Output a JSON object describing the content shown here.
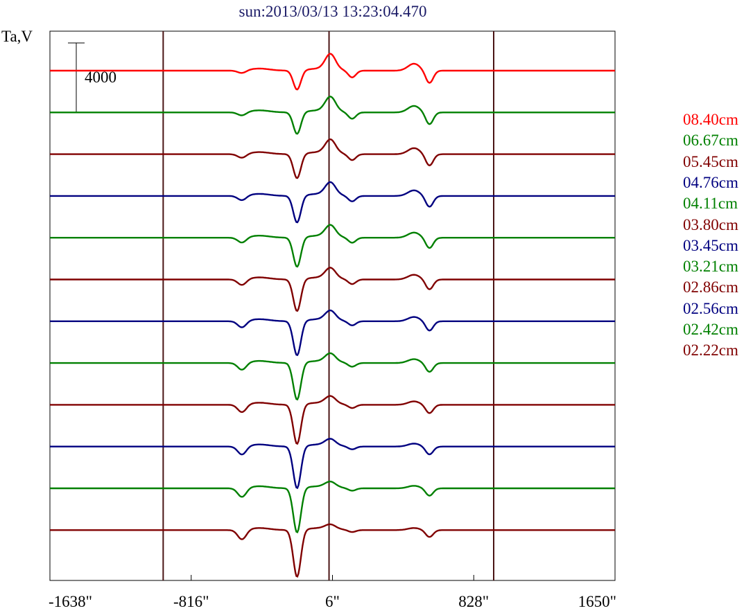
{
  "chart_data": {
    "type": "line",
    "title": "sun:2013/03/13 13:23:04.470",
    "ylabel": "Ta,V",
    "scale_bar_label": "4000",
    "x_ticks": [
      "-1638\"",
      "-816\"",
      "6\"",
      "828\"",
      "1650\""
    ],
    "x_tick_values": [
      -1638,
      -816,
      6,
      828,
      1650
    ],
    "xlim": [
      -1638,
      1650
    ],
    "vertical_lines": [
      -979,
      -14,
      944
    ],
    "series": [
      {
        "name": "08.40cm",
        "color": "#ff0000"
      },
      {
        "name": "06.67cm",
        "color": "#008000"
      },
      {
        "name": "05.45cm",
        "color": "#800000"
      },
      {
        "name": "04.76cm",
        "color": "#000080"
      },
      {
        "name": "04.11cm",
        "color": "#008000"
      },
      {
        "name": "03.80cm",
        "color": "#800000"
      },
      {
        "name": "03.45cm",
        "color": "#000080"
      },
      {
        "name": "03.21cm",
        "color": "#008000"
      },
      {
        "name": "02.86cm",
        "color": "#800000"
      },
      {
        "name": "02.56cm",
        "color": "#000080"
      },
      {
        "name": "02.42cm",
        "color": "#008000"
      },
      {
        "name": "02.22cm",
        "color": "#800000"
      }
    ]
  }
}
